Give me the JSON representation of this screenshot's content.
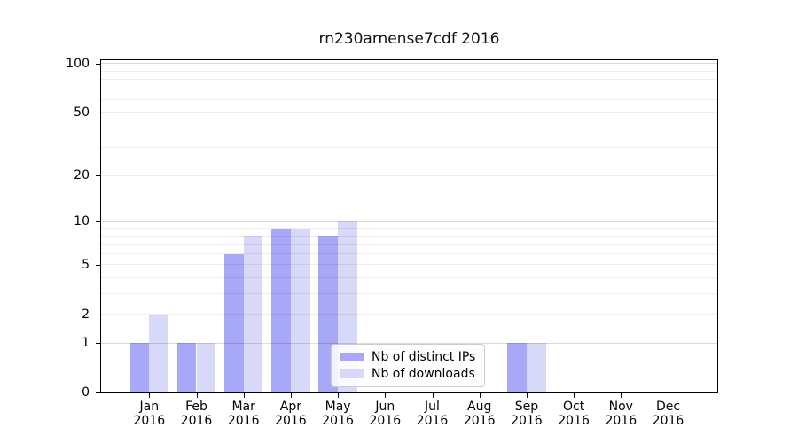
{
  "chart_data": {
    "type": "bar",
    "title": "rn230arnense7cdf 2016",
    "categories": [
      "Jan 2016",
      "Feb 2016",
      "Mar 2016",
      "Apr 2016",
      "May 2016",
      "Jun 2016",
      "Jul 2016",
      "Aug 2016",
      "Sep 2016",
      "Oct 2016",
      "Nov 2016",
      "Dec 2016"
    ],
    "x_tick_months": [
      "Jan",
      "Feb",
      "Mar",
      "Apr",
      "May",
      "Jun",
      "Jul",
      "Aug",
      "Sep",
      "Oct",
      "Nov",
      "Dec"
    ],
    "x_tick_year": "2016",
    "series": [
      {
        "name": "Nb of distinct IPs",
        "color": "#a8a8f8",
        "values": [
          1,
          1,
          6,
          9,
          8,
          0,
          0,
          0,
          1,
          0,
          0,
          0
        ]
      },
      {
        "name": "Nb of downloads",
        "color": "#d8d8f8",
        "values": [
          2,
          1,
          8,
          9,
          10,
          0,
          0,
          0,
          1,
          0,
          0,
          0
        ]
      }
    ],
    "y_axis": {
      "scale": "log10(value+1)",
      "ticks": [
        0,
        1,
        2,
        5,
        10,
        20,
        50,
        100
      ],
      "major_gridlines": [
        1,
        10,
        100
      ],
      "minor_gridlines": [
        2,
        3,
        4,
        5,
        6,
        7,
        8,
        9,
        20,
        30,
        40,
        50,
        60,
        70,
        80,
        90
      ],
      "ylim": [
        0,
        105
      ]
    },
    "xlabel": "",
    "ylabel": "",
    "grid": true,
    "legend_position": "lower center",
    "legend_entries": [
      "Nb of distinct IPs",
      "Nb of downloads"
    ]
  },
  "colors": {
    "background": "#ffffff",
    "axis": "#000000",
    "bar_distinct_ips": "#a8a8f8",
    "bar_downloads": "#d8d8f8"
  }
}
